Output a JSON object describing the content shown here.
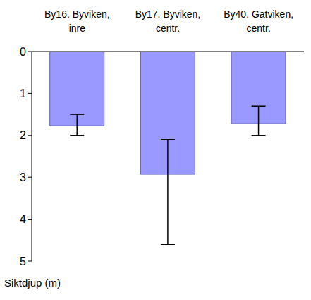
{
  "chart_data": {
    "type": "bar",
    "categories": [
      "By16. Byviken, inre",
      "By17. Byviken, centr.",
      "By40. Gatviken, centr."
    ],
    "values": [
      1.77,
      2.93,
      1.72
    ],
    "errors": [
      {
        "low": 1.5,
        "high": 2.0
      },
      {
        "low": 2.1,
        "high": 4.6
      },
      {
        "low": 1.3,
        "high": 2.0
      }
    ],
    "color": "#9999ff",
    "ylabel": "Siktdjup (m)",
    "ylim": [
      0,
      5
    ],
    "yticks": [
      0,
      1,
      2,
      3,
      4,
      5
    ],
    "grid": false
  }
}
